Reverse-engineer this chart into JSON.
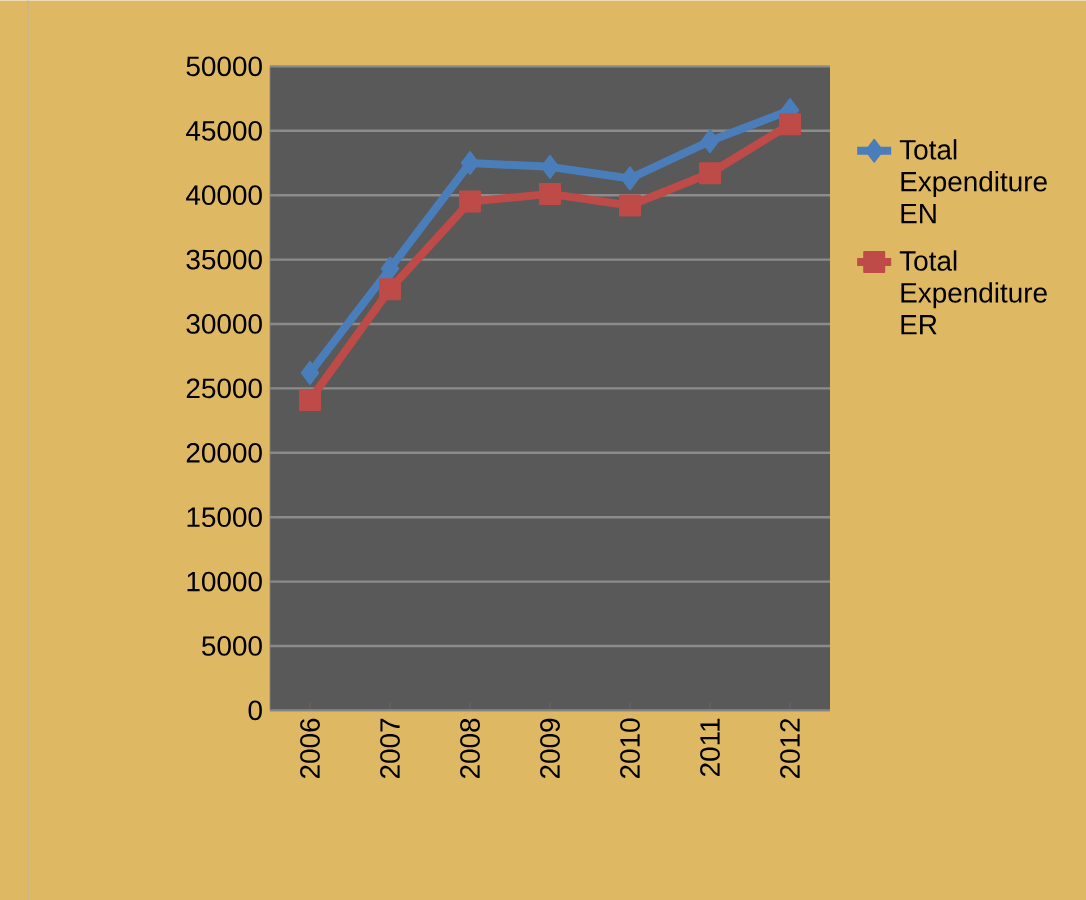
{
  "chart_data": {
    "type": "line",
    "categories": [
      "2006",
      "2007",
      "2008",
      "2009",
      "2010",
      "2011",
      "2012"
    ],
    "series": [
      {
        "name": "Total Expenditure EN",
        "color": "#4a7ebb",
        "marker": "diamond",
        "values": [
          26200,
          34300,
          42500,
          42200,
          41300,
          44200,
          46600
        ]
      },
      {
        "name": "Total Expenditure ER",
        "color": "#be4b48",
        "marker": "square",
        "values": [
          24100,
          32700,
          39500,
          40100,
          39200,
          41700,
          45500
        ]
      }
    ],
    "ylim": [
      0,
      50000
    ],
    "yticks": [
      0,
      5000,
      10000,
      15000,
      20000,
      25000,
      30000,
      35000,
      40000,
      45000,
      50000
    ],
    "grid": "y",
    "legend": "right"
  }
}
